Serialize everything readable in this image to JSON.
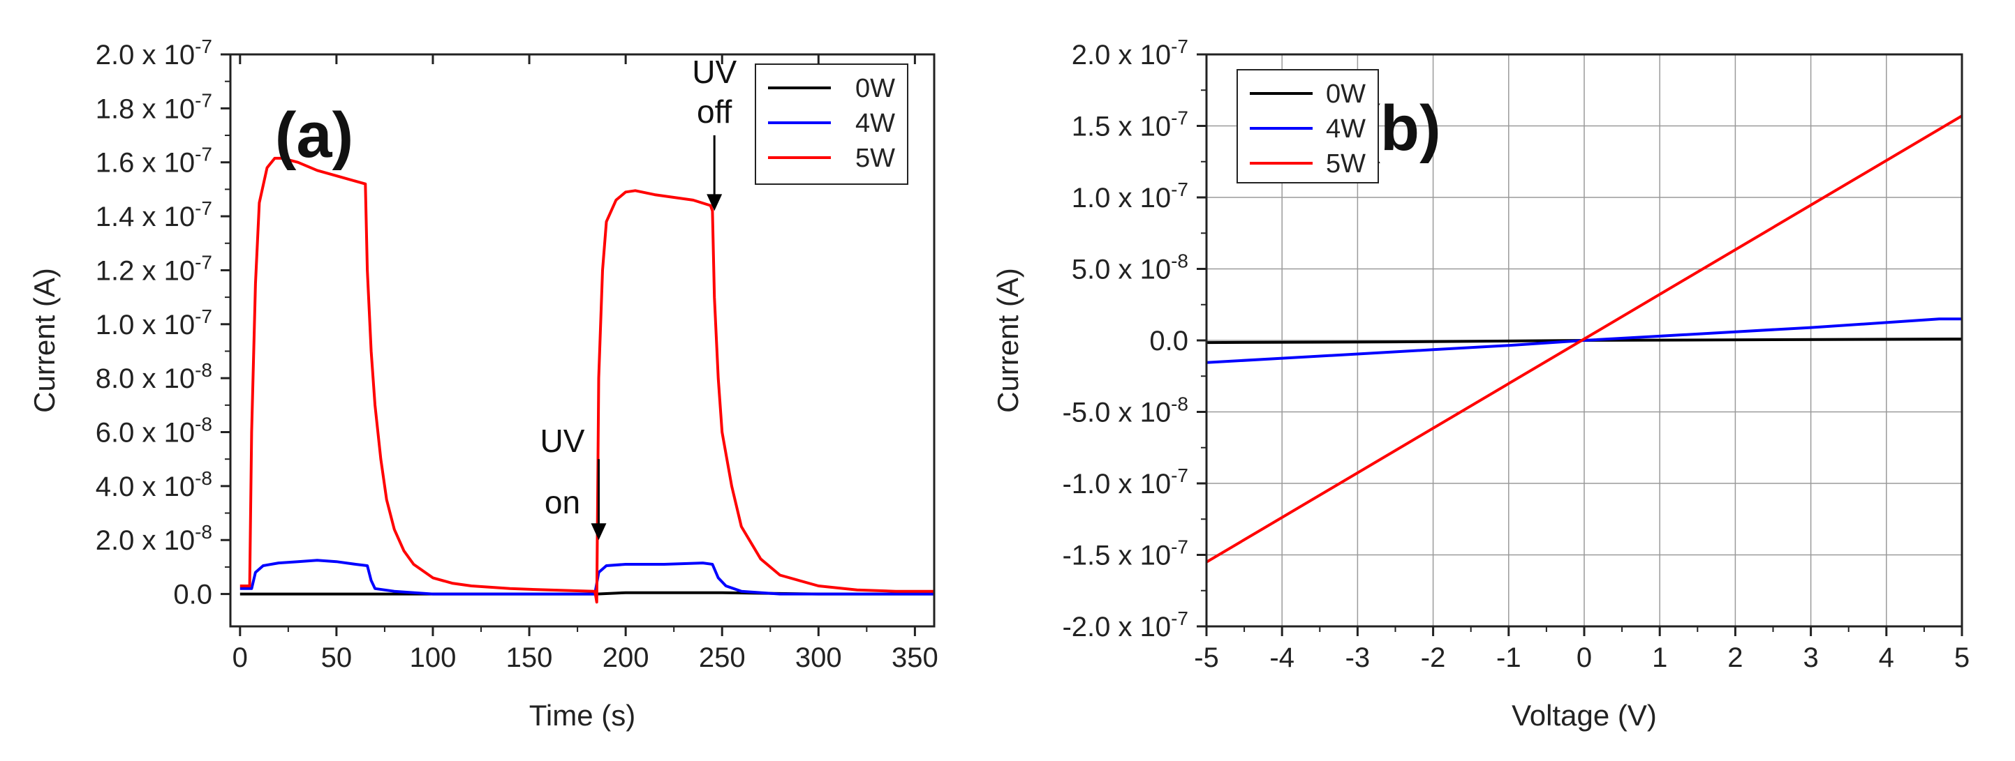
{
  "chart_data": [
    {
      "type": "line",
      "panel_label": "(a)",
      "xlabel": "Time (s)",
      "ylabel": "Current (A)",
      "xlim": [
        -5,
        360
      ],
      "ylim": [
        -1.2e-08,
        2e-07
      ],
      "grid": false,
      "legend_position": "top-right",
      "x_ticks": [
        0,
        50,
        100,
        150,
        200,
        250,
        300,
        350
      ],
      "x_tick_labels": [
        "0",
        "50",
        "100",
        "150",
        "200",
        "250",
        "300",
        "350"
      ],
      "y_ticks": [
        0,
        2e-08,
        4e-08,
        6e-08,
        8e-08,
        1e-07,
        1.2e-07,
        1.4e-07,
        1.6e-07,
        1.8e-07,
        2e-07
      ],
      "y_tick_labels": [
        {
          "mantissa": "0.0",
          "exponent": ""
        },
        {
          "mantissa": "2.0 x 10",
          "exponent": "-8"
        },
        {
          "mantissa": "4.0 x 10",
          "exponent": "-8"
        },
        {
          "mantissa": "6.0 x 10",
          "exponent": "-8"
        },
        {
          "mantissa": "8.0 x 10",
          "exponent": "-8"
        },
        {
          "mantissa": "1.0 x 10",
          "exponent": "-7"
        },
        {
          "mantissa": "1.2 x 10",
          "exponent": "-7"
        },
        {
          "mantissa": "1.4 x 10",
          "exponent": "-7"
        },
        {
          "mantissa": "1.6 x 10",
          "exponent": "-7"
        },
        {
          "mantissa": "1.8 x 10",
          "exponent": "-7"
        },
        {
          "mantissa": "2.0 x 10",
          "exponent": "-7"
        }
      ],
      "series": [
        {
          "name": "0W",
          "color": "#000000",
          "x": [
            0,
            50,
            100,
            150,
            185,
            200,
            250,
            300,
            360
          ],
          "y": [
            0,
            0,
            0,
            0,
            0,
            5e-10,
            5e-10,
            0,
            0
          ]
        },
        {
          "name": "4W",
          "color": "#0000ff",
          "x": [
            0,
            6,
            8,
            12,
            20,
            30,
            40,
            50,
            60,
            66,
            68,
            70,
            80,
            100,
            150,
            184,
            186,
            190,
            200,
            220,
            240,
            245,
            248,
            252,
            260,
            280,
            300,
            320,
            340,
            360
          ],
          "y": [
            2e-09,
            2e-09,
            8e-09,
            1.05e-08,
            1.15e-08,
            1.2e-08,
            1.25e-08,
            1.2e-08,
            1.1e-08,
            1.05e-08,
            5e-09,
            2e-09,
            1e-09,
            0,
            0,
            0,
            8e-09,
            1.05e-08,
            1.1e-08,
            1.1e-08,
            1.15e-08,
            1.1e-08,
            6e-09,
            3e-09,
            1e-09,
            0,
            0,
            0,
            0,
            0
          ]
        },
        {
          "name": "5W",
          "color": "#ff0000",
          "x": [
            0,
            5,
            6,
            8,
            10,
            14,
            18,
            22,
            30,
            40,
            50,
            60,
            65,
            66,
            68,
            70,
            73,
            76,
            80,
            85,
            90,
            100,
            110,
            120,
            140,
            160,
            184,
            185,
            186,
            188,
            190,
            195,
            200,
            205,
            215,
            225,
            235,
            244,
            245,
            246,
            248,
            250,
            255,
            260,
            270,
            280,
            300,
            320,
            340,
            360
          ],
          "y": [
            3e-09,
            3e-09,
            6e-08,
            1.15e-07,
            1.45e-07,
            1.58e-07,
            1.615e-07,
            1.615e-07,
            1.6e-07,
            1.57e-07,
            1.55e-07,
            1.53e-07,
            1.52e-07,
            1.2e-07,
            9e-08,
            7e-08,
            5e-08,
            3.5e-08,
            2.4e-08,
            1.6e-08,
            1.1e-08,
            6e-09,
            4e-09,
            3e-09,
            2e-09,
            1.5e-09,
            1e-09,
            -3e-09,
            8e-08,
            1.2e-07,
            1.38e-07,
            1.46e-07,
            1.49e-07,
            1.495e-07,
            1.48e-07,
            1.47e-07,
            1.46e-07,
            1.44e-07,
            1.42e-07,
            1.1e-07,
            8e-08,
            6e-08,
            4e-08,
            2.5e-08,
            1.3e-08,
            7e-09,
            3e-09,
            1.5e-09,
            1e-09,
            1e-09
          ]
        }
      ],
      "annotations": [
        {
          "text_line1": "UV",
          "text_line2": "on",
          "arrow_x": 186,
          "arrow_y_top": 5e-08,
          "arrow_y_bottom": 2e-08
        },
        {
          "text_line1": "UV",
          "text_line2": "off",
          "arrow_x": 246,
          "arrow_y_top": 1.7e-07,
          "arrow_y_bottom": 1.42e-07
        }
      ]
    },
    {
      "type": "line",
      "panel_label": "(b)",
      "xlabel": "Voltage (V)",
      "ylabel": "Current (A)",
      "xlim": [
        -5,
        5
      ],
      "ylim": [
        -2e-07,
        2e-07
      ],
      "grid": true,
      "legend_position": "top-left",
      "x_ticks": [
        -5,
        -4,
        -3,
        -2,
        -1,
        0,
        1,
        2,
        3,
        4,
        5
      ],
      "x_tick_labels": [
        "-5",
        "-4",
        "-3",
        "-2",
        "-1",
        "0",
        "1",
        "2",
        "3",
        "4",
        "5"
      ],
      "y_ticks": [
        -2e-07,
        -1.5e-07,
        -1e-07,
        -5e-08,
        0,
        5e-08,
        1e-07,
        1.5e-07,
        2e-07
      ],
      "y_tick_labels": [
        {
          "mantissa": "-2.0 x 10",
          "exponent": "-7"
        },
        {
          "mantissa": "-1.5 x 10",
          "exponent": "-7"
        },
        {
          "mantissa": "-1.0 x 10",
          "exponent": "-7"
        },
        {
          "mantissa": "-5.0 x 10",
          "exponent": "-8"
        },
        {
          "mantissa": "0.0",
          "exponent": ""
        },
        {
          "mantissa": "5.0 x 10",
          "exponent": "-8"
        },
        {
          "mantissa": "1.0 x 10",
          "exponent": "-7"
        },
        {
          "mantissa": "1.5 x 10",
          "exponent": "-7"
        },
        {
          "mantissa": "2.0 x 10",
          "exponent": "-7"
        }
      ],
      "series": [
        {
          "name": "0W",
          "color": "#000000",
          "x": [
            -5,
            -2.5,
            0,
            2.5,
            5
          ],
          "y": [
            -1.5e-09,
            -1e-09,
            0,
            5e-10,
            1e-09
          ]
        },
        {
          "name": "4W",
          "color": "#0000ff",
          "x": [
            -5,
            -4,
            -3,
            -2,
            -1,
            0,
            1,
            2,
            3,
            4,
            4.7,
            5
          ],
          "y": [
            -1.55e-08,
            -1.25e-08,
            -9.5e-09,
            -6.5e-09,
            -3.5e-09,
            0,
            3e-09,
            6e-09,
            9e-09,
            1.25e-08,
            1.5e-08,
            1.5e-08
          ]
        },
        {
          "name": "5W",
          "color": "#ff0000",
          "x": [
            -5,
            5
          ],
          "y": [
            -1.55e-07,
            1.57e-07
          ]
        }
      ]
    }
  ]
}
